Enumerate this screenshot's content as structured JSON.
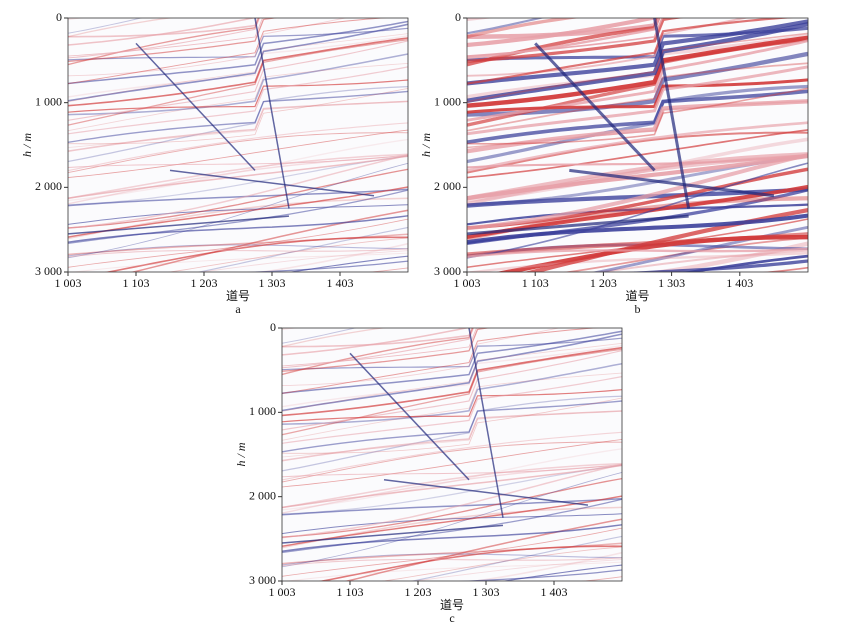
{
  "chart_data": [
    {
      "type": "image",
      "panel_label": "a",
      "xlabel": "道号",
      "ylabel": "h / m",
      "xlim": [
        1003,
        1503
      ],
      "ylim": [
        0,
        3000
      ],
      "y_inverted": true,
      "intensity": "weak",
      "xticks": [
        {
          "value": 1003,
          "label": "1 003"
        },
        {
          "value": 1103,
          "label": "1 103"
        },
        {
          "value": 1203,
          "label": "1 203"
        },
        {
          "value": 1303,
          "label": "1 303"
        },
        {
          "value": 1403,
          "label": "1 403"
        }
      ],
      "yticks": [
        0,
        {
          "value": 1000,
          "label": "1 000"
        },
        {
          "value": 2000,
          "label": "2 000"
        },
        {
          "value": 3000,
          "label": "3 000"
        }
      ]
    },
    {
      "type": "image",
      "panel_label": "b",
      "xlabel": "道号",
      "ylabel": "h / m",
      "xlim": [
        1003,
        1503
      ],
      "ylim": [
        0,
        3000
      ],
      "y_inverted": true,
      "intensity": "strong",
      "xticks": [
        {
          "value": 1003,
          "label": "1 003"
        },
        {
          "value": 1103,
          "label": "1 103"
        },
        {
          "value": 1203,
          "label": "1 203"
        },
        {
          "value": 1303,
          "label": "1 303"
        },
        {
          "value": 1403,
          "label": "1 403"
        }
      ],
      "yticks": [
        0,
        {
          "value": 1000,
          "label": "1 000"
        },
        {
          "value": 2000,
          "label": "2 000"
        },
        {
          "value": 3000,
          "label": "3 000"
        }
      ]
    },
    {
      "type": "image",
      "panel_label": "c",
      "xlabel": "道号",
      "ylabel": "h / m",
      "xlim": [
        1003,
        1503
      ],
      "ylim": [
        0,
        3000
      ],
      "y_inverted": true,
      "intensity": "weak",
      "xticks": [
        {
          "value": 1003,
          "label": "1 003"
        },
        {
          "value": 1103,
          "label": "1 103"
        },
        {
          "value": 1203,
          "label": "1 203"
        },
        {
          "value": 1303,
          "label": "1 303"
        },
        {
          "value": 1403,
          "label": "1 403"
        }
      ],
      "yticks": [
        0,
        {
          "value": 1000,
          "label": "1 000"
        },
        {
          "value": 2000,
          "label": "2 000"
        },
        {
          "value": 3000,
          "label": "3 000"
        }
      ]
    }
  ]
}
